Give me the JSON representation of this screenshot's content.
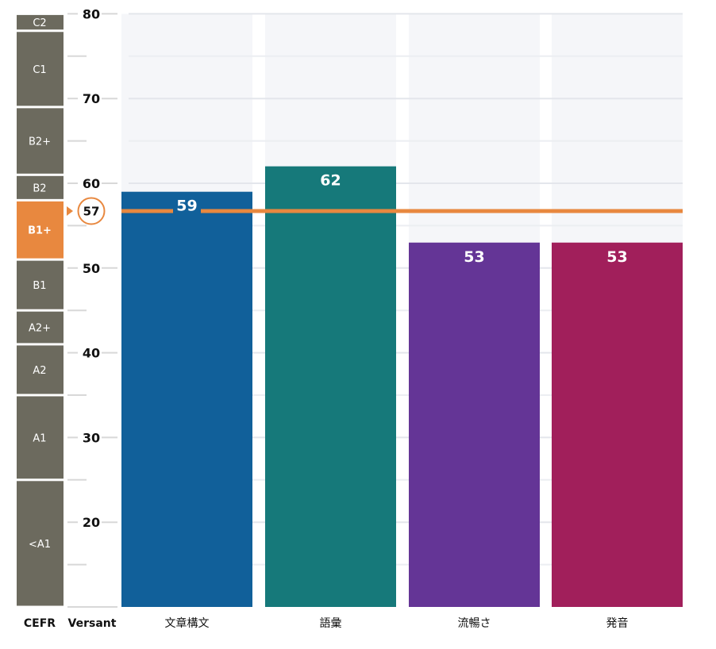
{
  "chart_data": {
    "type": "bar",
    "categories": [
      "文章構文",
      "語彙",
      "流暢さ",
      "発音"
    ],
    "values": [
      59,
      62,
      53,
      53
    ],
    "bar_colors": [
      "#11609a",
      "#16797a",
      "#643596",
      "#a11f5b"
    ],
    "ylim": [
      10,
      80
    ],
    "yticks": [
      20,
      30,
      40,
      50,
      60,
      70,
      80
    ],
    "grid": true,
    "overall_score": 57,
    "overall_color": "#e8883f",
    "cefr_bands": [
      {
        "label": "C2",
        "from": 78,
        "to": 80
      },
      {
        "label": "C1",
        "from": 69,
        "to": 78
      },
      {
        "label": "B2+",
        "from": 61,
        "to": 69
      },
      {
        "label": "B2",
        "from": 58,
        "to": 61
      },
      {
        "label": "B1+",
        "from": 51,
        "to": 58,
        "highlight": true
      },
      {
        "label": "B1",
        "from": 45,
        "to": 51
      },
      {
        "label": "A2+",
        "from": 41,
        "to": 45
      },
      {
        "label": "A2",
        "from": 35,
        "to": 41
      },
      {
        "label": "A1",
        "from": 25,
        "to": 35
      },
      {
        "label": "<A1",
        "from": 10,
        "to": 25
      }
    ],
    "cefr_color": "#6c6a5e",
    "x_titles": {
      "cefr": "CEFR",
      "versant": "Versant"
    }
  }
}
